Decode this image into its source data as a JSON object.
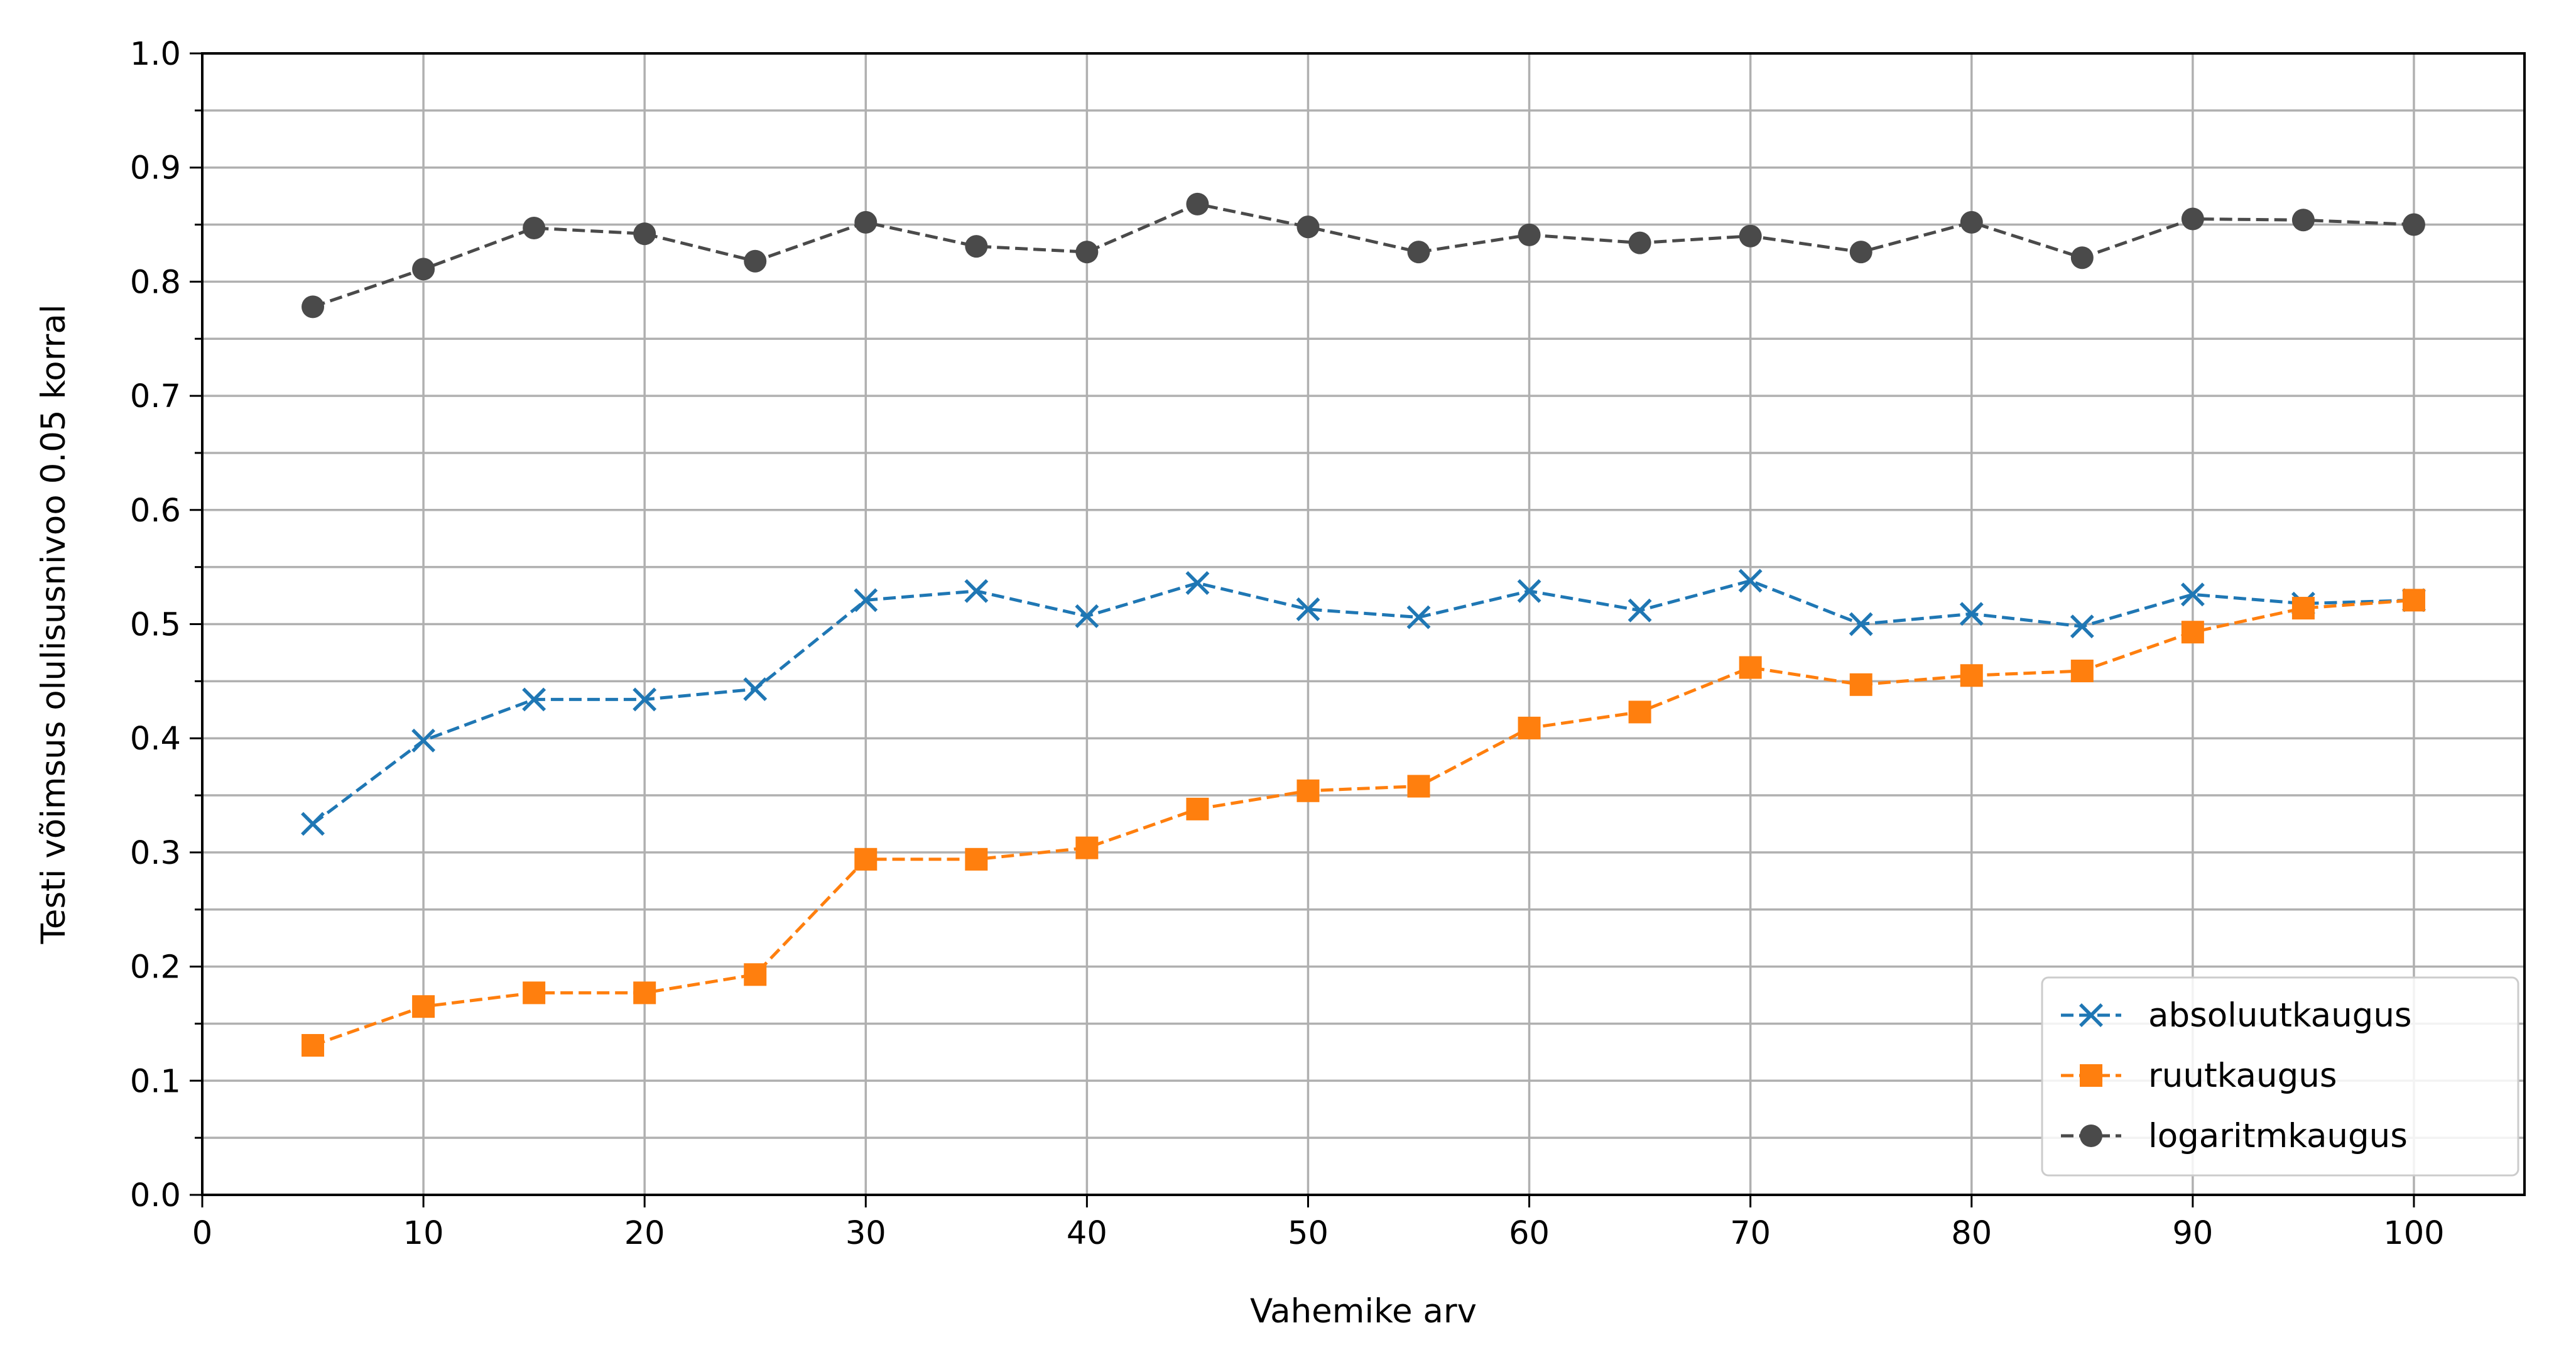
{
  "chart_data": {
    "type": "line",
    "title": "",
    "xlabel": "Vahemike arv",
    "ylabel": "Testi võimsus olulisusnivoo 0.05 korral",
    "xlim": [
      0,
      105
    ],
    "ylim": [
      0,
      1.0
    ],
    "xticks": [
      0,
      10,
      20,
      30,
      40,
      50,
      60,
      70,
      80,
      90,
      100
    ],
    "yticks": [
      0.0,
      0.1,
      0.2,
      0.3,
      0.4,
      0.5,
      0.6,
      0.7,
      0.8,
      0.9,
      1.0
    ],
    "xtick_labels": [
      "0",
      "10",
      "20",
      "30",
      "40",
      "50",
      "60",
      "70",
      "80",
      "90",
      "100"
    ],
    "ytick_labels": [
      "0.0",
      "0.1",
      "0.2",
      "0.3",
      "0.4",
      "0.5",
      "0.6",
      "0.7",
      "0.8",
      "0.9",
      "1.0"
    ],
    "minor_y_step": 0.05,
    "grid": true,
    "legend_position": "bottom-right",
    "x": [
      5,
      10,
      15,
      20,
      25,
      30,
      35,
      40,
      45,
      50,
      55,
      60,
      65,
      70,
      75,
      80,
      85,
      90,
      95,
      100
    ],
    "series": [
      {
        "name": "absoluutkaugus",
        "color": "#1f77b4",
        "marker": "x",
        "line_style": "dashed",
        "values": [
          0.325,
          0.398,
          0.434,
          0.434,
          0.443,
          0.521,
          0.529,
          0.507,
          0.536,
          0.513,
          0.506,
          0.529,
          0.512,
          0.538,
          0.5,
          0.509,
          0.498,
          0.526,
          0.518,
          0.521
        ]
      },
      {
        "name": "ruutkaugus",
        "color": "#ff7f0e",
        "marker": "square",
        "line_style": "dashed",
        "values": [
          0.131,
          0.165,
          0.177,
          0.177,
          0.193,
          0.294,
          0.294,
          0.304,
          0.338,
          0.354,
          0.358,
          0.409,
          0.423,
          0.462,
          0.447,
          0.455,
          0.459,
          0.493,
          0.514,
          0.521
        ]
      },
      {
        "name": "logaritmkaugus",
        "color": "#4a4a4a",
        "marker": "circle",
        "line_style": "dashed",
        "values": [
          0.778,
          0.811,
          0.847,
          0.842,
          0.818,
          0.852,
          0.831,
          0.826,
          0.868,
          0.848,
          0.826,
          0.841,
          0.834,
          0.84,
          0.826,
          0.852,
          0.821,
          0.855,
          0.854,
          0.85
        ]
      }
    ]
  }
}
